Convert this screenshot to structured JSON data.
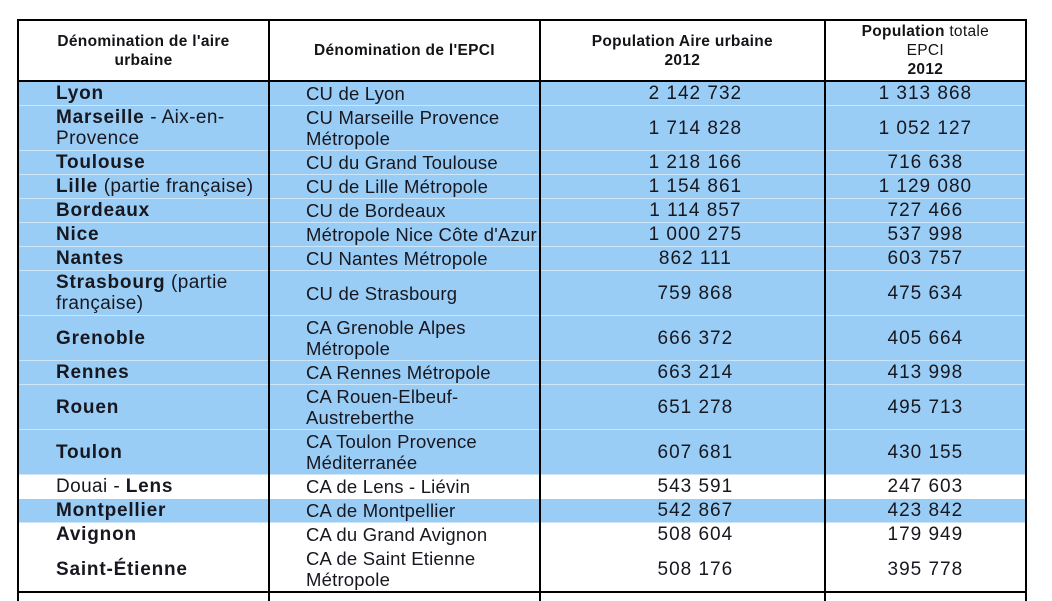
{
  "table": {
    "highlight_color": "#9ACDF5",
    "columns": [
      {
        "id": "aire",
        "label_segments": [
          {
            "text": "Dénomination de l'aire\nurbaine",
            "bold": true
          }
        ]
      },
      {
        "id": "epci",
        "label_segments": [
          {
            "text": "Dénomination de l'EPCI",
            "bold": true
          }
        ]
      },
      {
        "id": "pop_aire",
        "label_segments": [
          {
            "text": "Population  Aire urbaine\n2012",
            "bold": true
          }
        ]
      },
      {
        "id": "pop_epci",
        "label_segments": [
          {
            "text": "Population",
            "bold": true
          },
          {
            "text": " totale\nEPCI\n",
            "bold": false
          },
          {
            "text": "2012",
            "bold": true
          }
        ]
      }
    ],
    "rows": [
      {
        "aire": [
          {
            "text": "Lyon",
            "bold": true
          }
        ],
        "epci": "CU de Lyon",
        "pop_aire": "2 142 732",
        "pop_epci": "1 313 868",
        "highlight": true
      },
      {
        "aire": [
          {
            "text": "Marseille",
            "bold": true
          },
          {
            "text": " - Aix-en-\nProvence",
            "bold": false
          }
        ],
        "epci": "CU Marseille Provence\nMétropole",
        "pop_aire": "1 714 828",
        "pop_epci": "1 052 127",
        "highlight": true
      },
      {
        "aire": [
          {
            "text": "Toulouse",
            "bold": true
          }
        ],
        "epci": "CU du Grand Toulouse",
        "pop_aire": "1 218 166",
        "pop_epci": "716 638",
        "highlight": true
      },
      {
        "aire": [
          {
            "text": "Lille",
            "bold": true
          },
          {
            "text": " (partie française)",
            "bold": false
          }
        ],
        "epci": "CU de Lille Métropole",
        "pop_aire": "1 154 861",
        "pop_epci": "1 129 080",
        "highlight": true
      },
      {
        "aire": [
          {
            "text": "Bordeaux",
            "bold": true
          }
        ],
        "epci": "CU de Bordeaux",
        "pop_aire": "1 114 857",
        "pop_epci": "727 466",
        "highlight": true
      },
      {
        "aire": [
          {
            "text": "Nice",
            "bold": true
          }
        ],
        "epci": "Métropole Nice Côte d'Azur",
        "pop_aire": "1 000 275",
        "pop_epci": "537 998",
        "highlight": true
      },
      {
        "aire": [
          {
            "text": "Nantes",
            "bold": true
          }
        ],
        "epci": "CU Nantes Métropole",
        "pop_aire": "862 111",
        "pop_epci": "603 757",
        "highlight": true
      },
      {
        "aire": [
          {
            "text": "Strasbourg",
            "bold": true
          },
          {
            "text": " (partie\nfrançaise)",
            "bold": false
          }
        ],
        "epci": "CU de Strasbourg",
        "pop_aire": "759 868",
        "pop_epci": "475 634",
        "highlight": true
      },
      {
        "aire": [
          {
            "text": "Grenoble",
            "bold": true
          }
        ],
        "epci": "CA Grenoble Alpes\nMétropole",
        "pop_aire": "666 372",
        "pop_epci": "405 664",
        "highlight": true
      },
      {
        "aire": [
          {
            "text": "Rennes",
            "bold": true
          }
        ],
        "epci": "CA Rennes Métropole",
        "pop_aire": "663 214",
        "pop_epci": "413 998",
        "highlight": true
      },
      {
        "aire": [
          {
            "text": "Rouen",
            "bold": true
          }
        ],
        "epci": "CA Rouen-Elbeuf-\nAustreberthe",
        "pop_aire": "651 278",
        "pop_epci": "495 713",
        "highlight": true
      },
      {
        "aire": [
          {
            "text": "Toulon",
            "bold": true
          }
        ],
        "epci": "CA Toulon Provence\nMéditerranée",
        "pop_aire": "607 681",
        "pop_epci": "430 155",
        "highlight": true
      },
      {
        "aire": [
          {
            "text": "Douai - ",
            "bold": false
          },
          {
            "text": "Lens",
            "bold": true
          }
        ],
        "epci": "CA de Lens - Liévin",
        "pop_aire": "543 591",
        "pop_epci": "247 603",
        "highlight": false
      },
      {
        "aire": [
          {
            "text": "Montpellier",
            "bold": true
          }
        ],
        "epci": "CA de Montpellier",
        "pop_aire": "542 867",
        "pop_epci": "423 842",
        "highlight": true
      },
      {
        "aire": [
          {
            "text": "Avignon",
            "bold": true
          }
        ],
        "epci": "CA du Grand Avignon",
        "pop_aire": "508 604",
        "pop_epci": "179 949",
        "highlight": false
      },
      {
        "aire": [
          {
            "text": "Saint-Étienne",
            "bold": true
          }
        ],
        "epci": "CA de Saint Etienne\nMétropole",
        "pop_aire": "508 176",
        "pop_epci": "395 778",
        "highlight": false
      }
    ]
  }
}
